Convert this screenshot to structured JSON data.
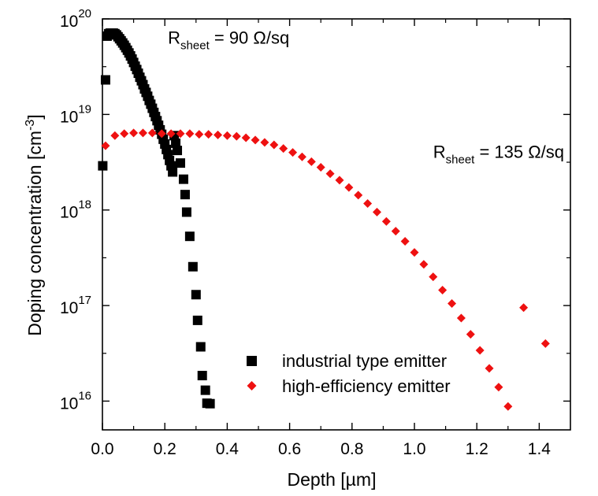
{
  "chart_data": {
    "type": "scatter",
    "xlabel": "Depth [µm]",
    "ylabel": "Doping concentration [cm",
    "ylabel_sup": "-3",
    "ylabel_end": "]",
    "xlim": [
      0.0,
      1.5
    ],
    "ylim": [
      5000000000000000.0,
      1e+20
    ],
    "yscale": "log",
    "grid": false,
    "legend_placement": "bottom-center",
    "x_ticks": [
      "0.0",
      "0.2",
      "0.4",
      "0.6",
      "0.8",
      "1.0",
      "1.2",
      "1.4"
    ],
    "y_ticks": [
      {
        "base": "10",
        "exp": "16",
        "value": 1e+16
      },
      {
        "base": "10",
        "exp": "17",
        "value": 1e+17
      },
      {
        "base": "10",
        "exp": "18",
        "value": 1e+18
      },
      {
        "base": "10",
        "exp": "19",
        "value": 1e+19
      },
      {
        "base": "10",
        "exp": "20",
        "value": 1e+20
      }
    ],
    "annotations": [
      {
        "main": "R",
        "sub": "sheet",
        "rest": " = 90 Ω/sq",
        "x": 0.21,
        "y": 5.5e+19
      },
      {
        "main": "R",
        "sub": "sheet",
        "rest": " = 135 Ω/sq",
        "x": 1.06,
        "y": 3.5e+18
      }
    ],
    "series": [
      {
        "name": "industrial type emitter",
        "color": "#000000",
        "marker": "square",
        "x": [
          0.001,
          0.01,
          0.015,
          0.02,
          0.025,
          0.03,
          0.035,
          0.04,
          0.045,
          0.05,
          0.055,
          0.06,
          0.065,
          0.07,
          0.075,
          0.08,
          0.085,
          0.09,
          0.095,
          0.1,
          0.105,
          0.11,
          0.115,
          0.12,
          0.125,
          0.13,
          0.135,
          0.14,
          0.145,
          0.15,
          0.155,
          0.16,
          0.165,
          0.17,
          0.175,
          0.18,
          0.185,
          0.19,
          0.195,
          0.2,
          0.205,
          0.21,
          0.215,
          0.22,
          0.225,
          0.23,
          0.235,
          0.24,
          0.25,
          0.26,
          0.265,
          0.27,
          0.28,
          0.29,
          0.3,
          0.305,
          0.315,
          0.32,
          0.33,
          0.335,
          0.345
        ],
        "y": [
          2.9e+18,
          2.3e+19,
          6.6e+19,
          7e+19,
          7.1e+19,
          7.1e+19,
          7.1e+19,
          7e+19,
          6.8e+19,
          6.5e+19,
          6.2e+19,
          5.9e+19,
          5.6e+19,
          5.3e+19,
          5e+19,
          4.7e+19,
          4.4e+19,
          4.1e+19,
          3.8e+19,
          3.5e+19,
          3.2e+19,
          2.95e+19,
          2.7e+19,
          2.45e+19,
          2.25e+19,
          2.05e+19,
          1.85e+19,
          1.7e+19,
          1.55e+19,
          1.4e+19,
          1.28e+19,
          1.16e+19,
          1.05e+19,
          9.5e+18,
          8.6e+18,
          7.7e+18,
          6.9e+18,
          6.2e+18,
          5.5e+18,
          4.9e+18,
          4.3e+18,
          3.8e+18,
          3.3e+18,
          2.9e+18,
          2.5e+18,
          6e+18,
          5e+18,
          4.2e+18,
          3.1e+18,
          2.1e+18,
          1.45e+18,
          9.5e+17,
          5.3e+17,
          2.55e+17,
          1.3e+17,
          7e+16,
          3.7e+16,
          1.85e+16,
          1.3e+16,
          9500000000000000.0,
          9400000000000000.0
        ]
      },
      {
        "name": "high-efficiency emitter",
        "color": "#ee1111",
        "marker": "diamond",
        "x": [
          0.01,
          0.04,
          0.07,
          0.1,
          0.13,
          0.16,
          0.19,
          0.22,
          0.25,
          0.28,
          0.31,
          0.34,
          0.37,
          0.4,
          0.43,
          0.46,
          0.49,
          0.52,
          0.55,
          0.58,
          0.61,
          0.64,
          0.67,
          0.7,
          0.73,
          0.76,
          0.79,
          0.82,
          0.85,
          0.88,
          0.91,
          0.94,
          0.97,
          1.0,
          1.03,
          1.06,
          1.09,
          1.12,
          1.15,
          1.18,
          1.21,
          1.24,
          1.27,
          1.3,
          1.35,
          1.42
        ],
        "y": [
          4.7e+18,
          6e+18,
          6.3e+18,
          6.4e+18,
          6.4e+18,
          6.4e+18,
          6.3e+18,
          6.3e+18,
          6.3e+18,
          6.3e+18,
          6.2e+18,
          6.2e+18,
          6.1e+18,
          6e+18,
          5.9e+18,
          5.7e+18,
          5.4e+18,
          5.1e+18,
          4.8e+18,
          4.4e+18,
          4e+18,
          3.6e+18,
          3.2e+18,
          2.8e+18,
          2.4e+18,
          2.05e+18,
          1.72e+18,
          1.43e+18,
          1.17e+18,
          9.5e+17,
          7.6e+17,
          6e+17,
          4.7e+17,
          3.6e+17,
          2.7e+17,
          2e+17,
          1.45e+17,
          1.05e+17,
          7.4e+16,
          5e+16,
          3.4e+16,
          2.2e+16,
          1.4e+16,
          8800000000000000.0,
          9.5e+16,
          4e+16
        ]
      }
    ]
  }
}
